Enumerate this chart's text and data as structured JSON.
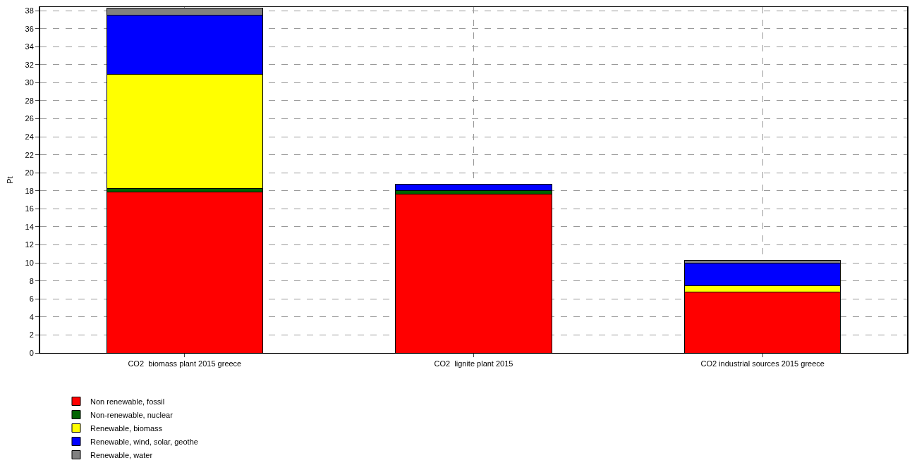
{
  "chart_data": {
    "type": "bar",
    "stacked": true,
    "ylabel": "Pt",
    "categories": [
      "CO2  biomass plant 2015 greece",
      "CO2  lignite plant 2015",
      "CO2 industrial sources 2015 greece"
    ],
    "series": [
      {
        "name": "Non renewable, fossil",
        "color": "#ff0000",
        "values": [
          17.9,
          17.6,
          6.8
        ]
      },
      {
        "name": "Non-renewable, nuclear",
        "color": "#006400",
        "values": [
          0.4,
          0.4,
          null
        ]
      },
      {
        "name": "Renewable, biomass",
        "color": "#ffff00",
        "values": [
          12.6,
          null,
          0.7
        ]
      },
      {
        "name": "Renewable, wind, solar, geothe",
        "color": "#0000ff",
        "values": [
          6.6,
          0.7,
          2.5
        ]
      },
      {
        "name": "Renewable, water",
        "color": "#808080",
        "values": [
          0.8,
          null,
          0.3
        ]
      }
    ],
    "ylim": [
      0,
      38.4
    ],
    "yticks": [
      0,
      2,
      4,
      6,
      8,
      10,
      12,
      14,
      16,
      18,
      20,
      22,
      24,
      26,
      28,
      30,
      32,
      34,
      36,
      38
    ],
    "grid": true,
    "legend": "bottom"
  }
}
